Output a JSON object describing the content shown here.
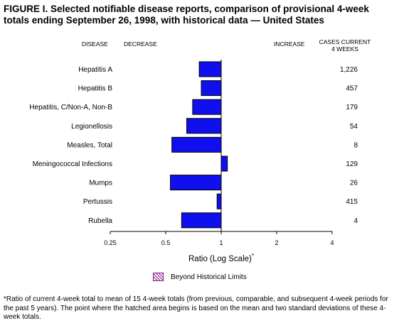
{
  "figure": {
    "title": "FIGURE I. Selected notifiable disease reports, comparison of provisional 4-week totals ending September 26, 1998, with historical data — United States",
    "header_disease": "DISEASE",
    "header_decrease": "DECREASE",
    "header_increase": "INCREASE",
    "header_cases_line1": "CASES CURRENT",
    "header_cases_line2": "4 WEEKS",
    "xlabel": "Ratio (Log Scale)",
    "xlabel_marker": "*",
    "legend_label": "Beyond Historical Limits",
    "footnote": "*Ratio of current 4-week total to mean of 15 4-week totals (from previous, comparable, and subsequent 4-week periods for the past 5 years). The point where the hatched area begins is based on the mean and two standard deviations of these 4-week totals."
  },
  "chart_data": {
    "type": "bar",
    "orientation": "horizontal",
    "x_scale": "log2",
    "xlim": [
      0.25,
      4
    ],
    "xticks": [
      "0.25",
      "0.5",
      "1",
      "2",
      "4"
    ],
    "tick_values": [
      0.25,
      0.5,
      1,
      2,
      4
    ],
    "categories": [
      "Hepatitis A",
      "Hepatitis B",
      "Hepatitis, C/Non-A, Non-B",
      "Legionellosis",
      "Measles, Total",
      "Meningococcal Infections",
      "Mumps",
      "Pertussis",
      "Rubella"
    ],
    "ratios": [
      0.76,
      0.78,
      0.7,
      0.65,
      0.54,
      1.08,
      0.53,
      0.95,
      0.61
    ],
    "cases_current_4_weeks": [
      "1,226",
      "457",
      "179",
      "54",
      "8",
      "129",
      "26",
      "415",
      "4"
    ],
    "baseline": 1,
    "colors": {
      "bar": "#1010ee",
      "bar_outline": "#000000",
      "hatch": "#8b1a8b"
    }
  }
}
